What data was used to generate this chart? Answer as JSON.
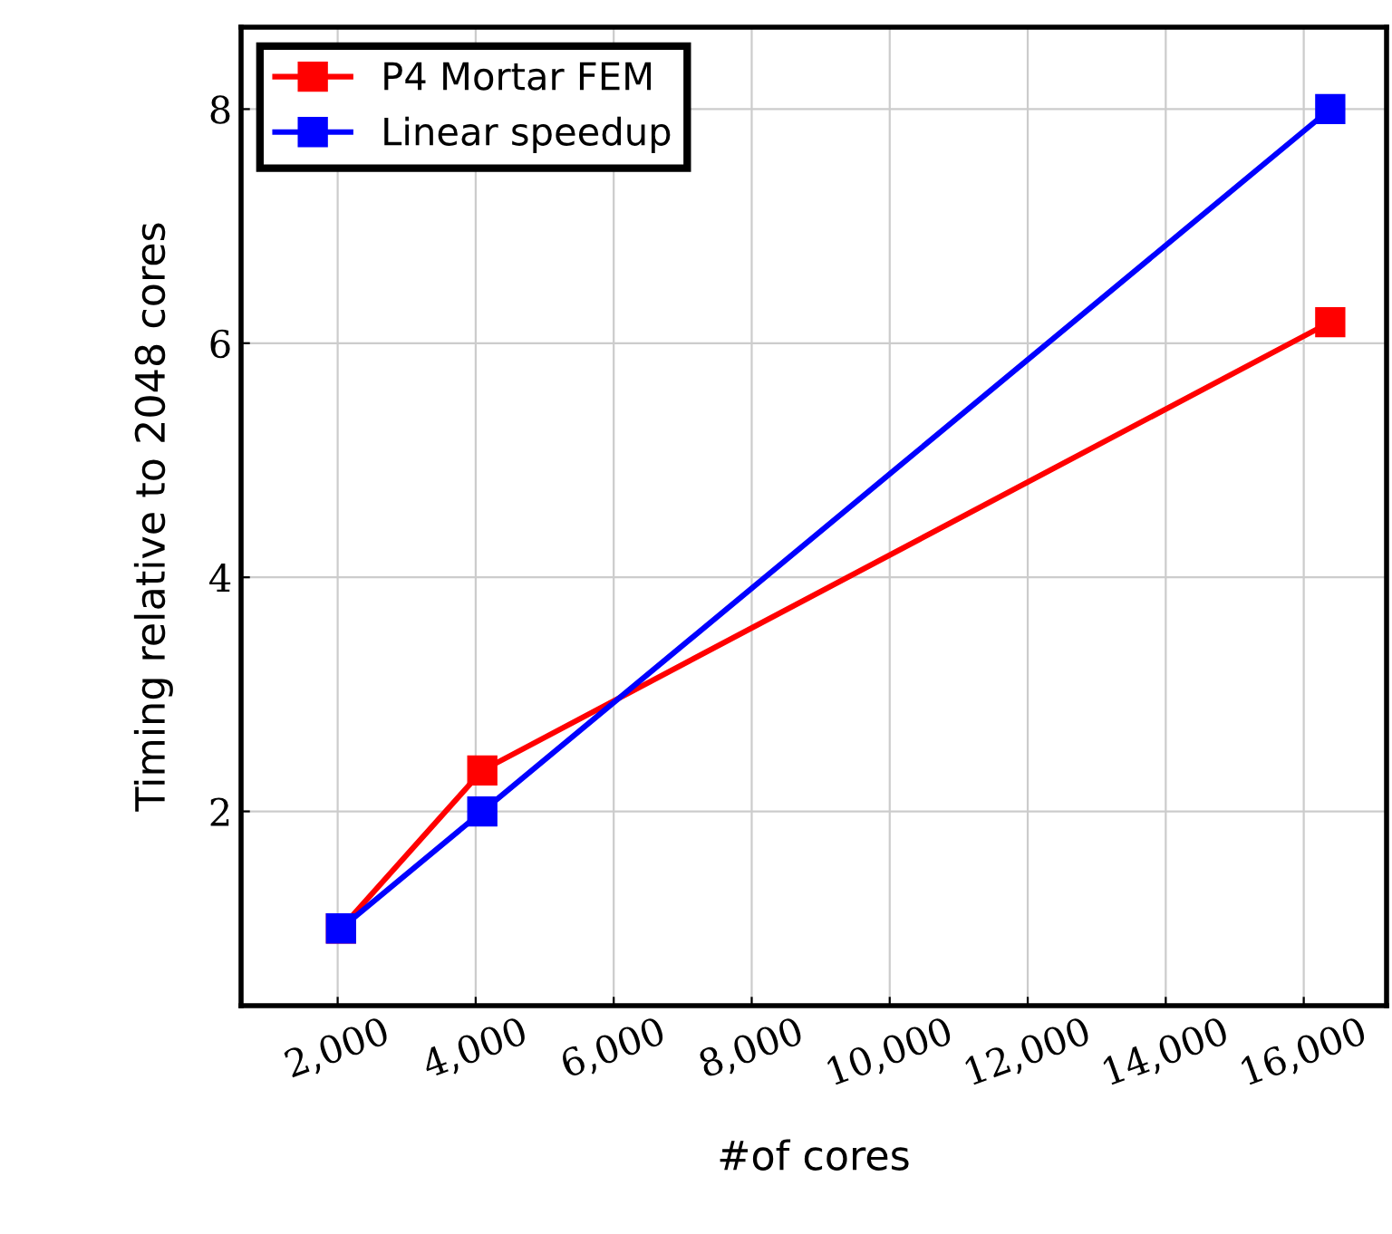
{
  "chart_data": {
    "type": "line",
    "xlabel": "#of cores",
    "ylabel": "Timing relative to 2048 cores",
    "x": [
      2048,
      4096,
      16384
    ],
    "series": [
      {
        "name": "P4 Mortar FEM",
        "color": "#ff0000",
        "values": [
          1,
          2.35,
          6.18
        ]
      },
      {
        "name": "Linear speedup",
        "color": "#0000ff",
        "values": [
          1,
          2,
          8
        ]
      }
    ],
    "xlim": [
      600,
      17200
    ],
    "ylim": [
      0.34,
      8.7
    ],
    "xticks": [
      {
        "value": 2000,
        "label": "2,000"
      },
      {
        "value": 4000,
        "label": "4,000"
      },
      {
        "value": 6000,
        "label": "6,000"
      },
      {
        "value": 8000,
        "label": "8,000"
      },
      {
        "value": 10000,
        "label": "10,000"
      },
      {
        "value": 12000,
        "label": "12,000"
      },
      {
        "value": 14000,
        "label": "14,000"
      },
      {
        "value": 16000,
        "label": "16,000"
      }
    ],
    "yticks": [
      2,
      4,
      6,
      8
    ],
    "grid": true,
    "legend": "top left",
    "marker": "square",
    "line_style": "solid"
  }
}
